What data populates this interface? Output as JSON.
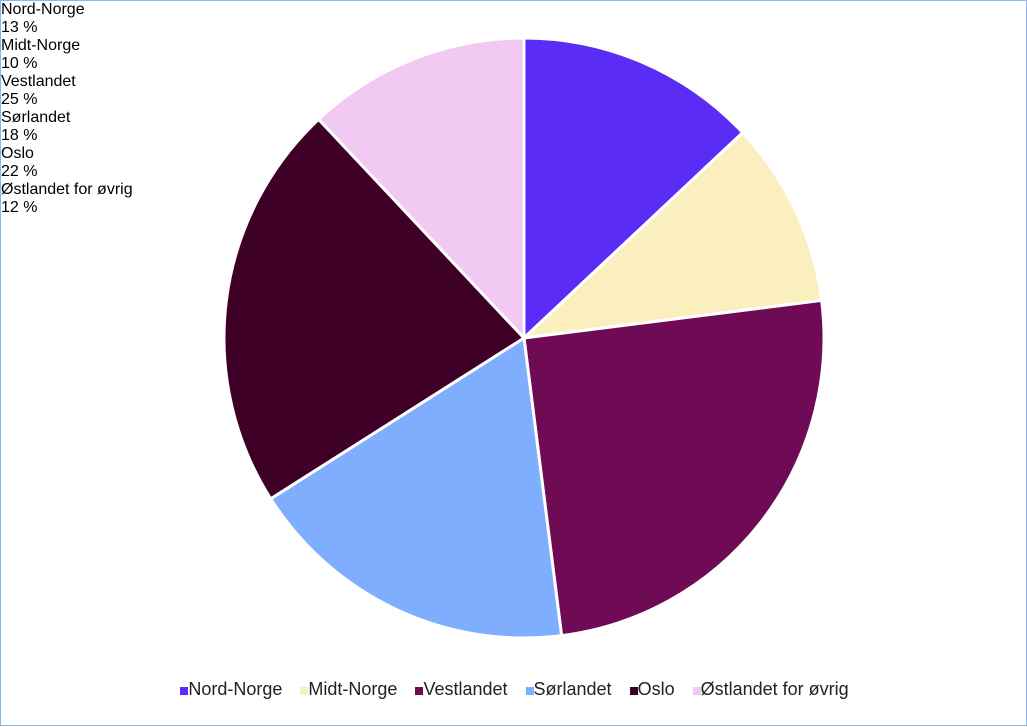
{
  "chart_data": {
    "type": "pie",
    "categories": [
      "Nord-Norge",
      "Midt-Norge",
      "Vestlandet",
      "Sørlandet",
      "Oslo",
      "Østlandet for øvrig"
    ],
    "values": [
      13,
      10,
      25,
      18,
      22,
      12
    ],
    "value_labels": [
      "13 %",
      "10 %",
      "25 %",
      "18 %",
      "22 %",
      "12 %"
    ],
    "colors": [
      "#5a2cf5",
      "#fbefc0",
      "#6f0a55",
      "#7faeff",
      "#3f0028",
      "#f2c9f2"
    ],
    "legend": "bottom"
  }
}
